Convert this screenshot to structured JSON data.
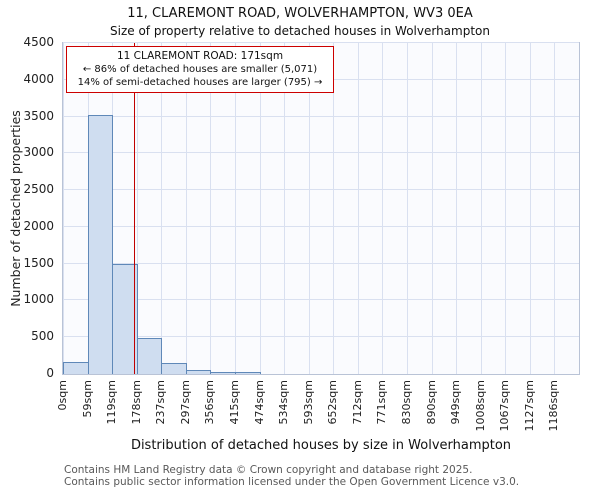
{
  "title": "11, CLAREMONT ROAD, WOLVERHAMPTON, WV3 0EA",
  "subtitle": "Size of property relative to detached houses in Wolverhampton",
  "annotation": {
    "line1": "11 CLAREMONT ROAD: 171sqm",
    "line2": "← 86% of detached houses are smaller (5,071)",
    "line3": "14% of semi-detached houses are larger (795) →"
  },
  "footer": {
    "line1": "Contains HM Land Registry data © Crown copyright and database right 2025.",
    "line2": "Contains public sector information licensed under the Open Government Licence v3.0."
  },
  "chart_data": {
    "type": "bar",
    "title": "11, CLAREMONT ROAD, WOLVERHAMPTON, WV3 0EA",
    "subtitle": "Size of property relative to detached houses in Wolverhampton",
    "xlabel": "Distribution of detached houses by size in Wolverhampton",
    "ylabel": "Number of detached properties",
    "categories": [
      "0sqm",
      "59sqm",
      "119sqm",
      "178sqm",
      "237sqm",
      "297sqm",
      "356sqm",
      "415sqm",
      "474sqm",
      "534sqm",
      "593sqm",
      "652sqm",
      "712sqm",
      "771sqm",
      "830sqm",
      "890sqm",
      "949sqm",
      "1008sqm",
      "1067sqm",
      "1127sqm",
      "1186sqm"
    ],
    "values": [
      170,
      3520,
      1500,
      490,
      145,
      50,
      18,
      8,
      0,
      0,
      0,
      0,
      0,
      0,
      0,
      0,
      0,
      0,
      0,
      0,
      0
    ],
    "ylim": [
      0,
      4500
    ],
    "y_ticks": [
      0,
      500,
      1000,
      1500,
      2000,
      2500,
      3000,
      3500,
      4000,
      4500
    ],
    "y_tick_labels": [
      "0",
      "500",
      "1000",
      "1500",
      "2000",
      "2500",
      "3000",
      "3500",
      "4000",
      "4500"
    ],
    "grid": true,
    "legend": false,
    "bar_fill": "#cfddf0",
    "bar_edge": "#5f88b8",
    "grid_color": "#d9e0f0",
    "marker": {
      "label": "11 CLAREMONT ROAD",
      "value_sqm": 171,
      "axis_max_sqm": 1245,
      "color": "#c00000"
    }
  }
}
